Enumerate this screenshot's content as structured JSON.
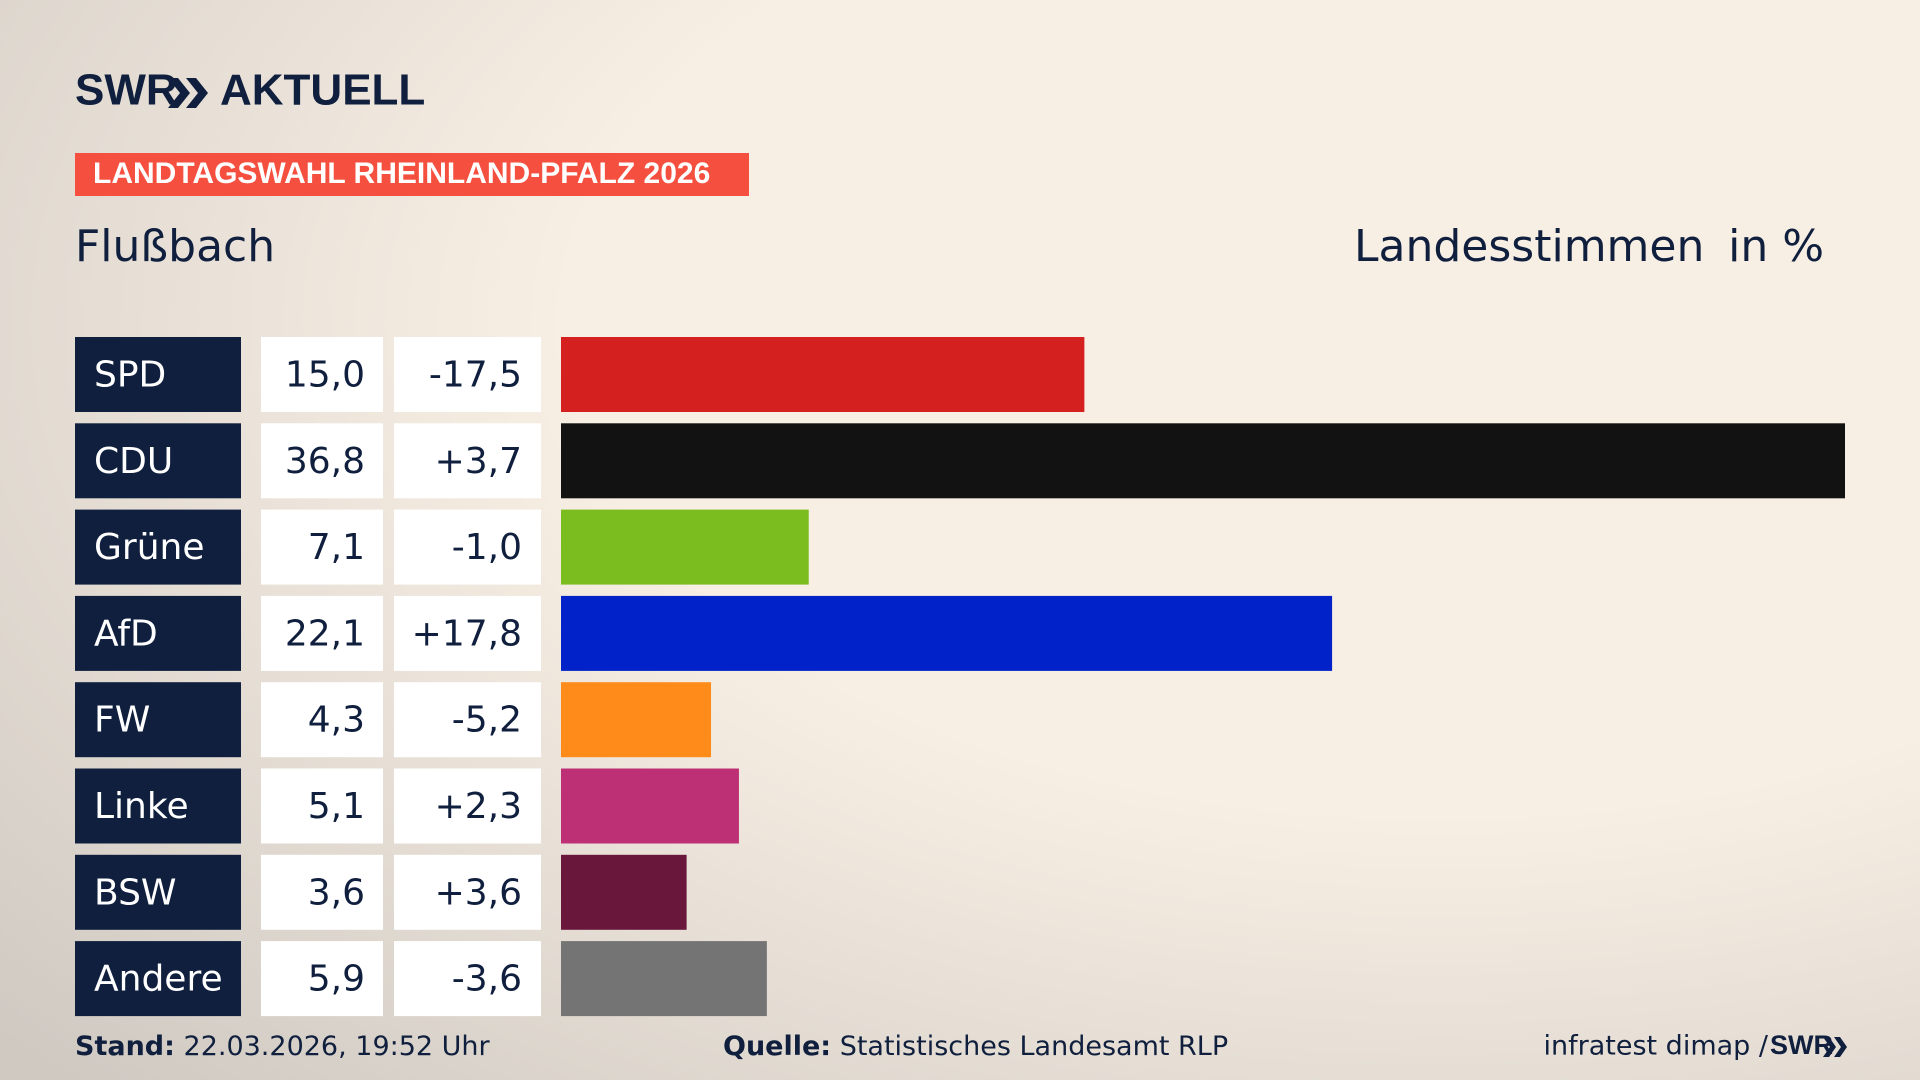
{
  "header": {
    "logo": "SWR",
    "logo_section": "AKTUELL",
    "banner": "LANDTAGSWAHL RHEINLAND-PFALZ 2026"
  },
  "chart_data": {
    "type": "bar",
    "title": "Flußbach",
    "subtitle": "Landesstimmen",
    "unit_label": "in %",
    "categories": [
      "SPD",
      "CDU",
      "Grüne",
      "AfD",
      "FW",
      "Linke",
      "BSW",
      "Andere"
    ],
    "values": [
      15.0,
      36.8,
      7.1,
      22.1,
      4.3,
      5.1,
      3.6,
      5.9
    ],
    "value_labels": [
      "15,0",
      "36,8",
      "7,1",
      "22,1",
      "4,3",
      "5,1",
      "3,6",
      "5,9"
    ],
    "changes": [
      "-17,5",
      "+3,7",
      "-1,0",
      "+17,8",
      "-5,2",
      "+2,3",
      "+3,6",
      "-3,6"
    ],
    "colors": [
      "#d52020",
      "#121212",
      "#7bbd1f",
      "#0022c8",
      "#ff8c1a",
      "#bd3075",
      "#6a173c",
      "#747474"
    ]
  },
  "footer": {
    "stand_label": "Stand:",
    "stand": "22.03.2026, 19:52 Uhr",
    "source_label": "Quelle:",
    "source": "Statistisches Landesamt RLP",
    "credit": "infratest dimap /",
    "credit_logo": "SWR"
  }
}
